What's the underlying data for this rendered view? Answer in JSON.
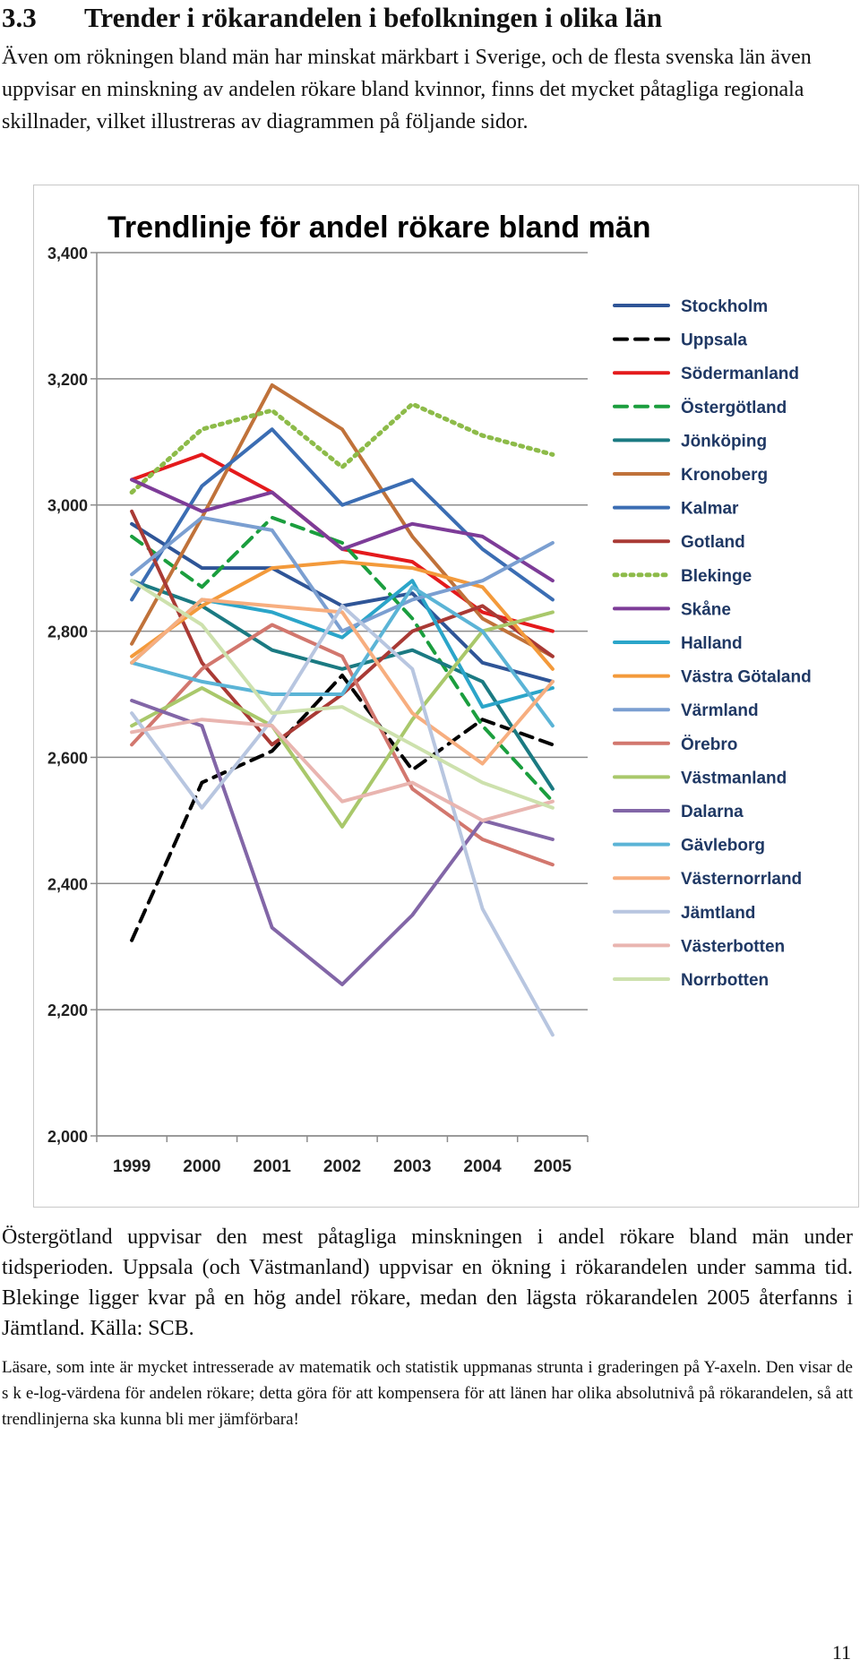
{
  "section": {
    "number": "3.3",
    "title": "Trender i rökarandelen i befolkningen i olika län"
  },
  "intro_text": "Även om rökningen bland män har minskat märkbart i Sverige, och de flesta svenska län även uppvisar en minskning av andelen rökare bland kvinnor, finns det mycket påtagliga regionala skillnader, vilket illustreras av diagrammen på följande sidor.",
  "chart_data": {
    "type": "line",
    "title": "Trendlinje för andel rökare bland män",
    "xlabel": "",
    "ylabel": "",
    "categories": [
      "1999",
      "2000",
      "2001",
      "2002",
      "2003",
      "2004",
      "2005"
    ],
    "ylim": [
      2.0,
      3.4
    ],
    "y_ticks": [
      2.0,
      2.2,
      2.4,
      2.6,
      2.8,
      3.0,
      3.2,
      3.4
    ],
    "y_tick_labels": [
      "2,000",
      "2,200",
      "2,400",
      "2,600",
      "2,800",
      "3,000",
      "3,200",
      "3,400"
    ],
    "legend_position": "right",
    "grid": "horizontal",
    "series": [
      {
        "name": "Stockholm",
        "color": "#2f5597",
        "dash": "solid",
        "values": [
          2.97,
          2.9,
          2.9,
          2.84,
          2.86,
          2.75,
          2.72
        ]
      },
      {
        "name": "Uppsala",
        "color": "#000000",
        "dash": "dashed",
        "values": [
          2.31,
          2.56,
          2.61,
          2.73,
          2.58,
          2.66,
          2.62
        ]
      },
      {
        "name": "Södermanland",
        "color": "#e41a1c",
        "dash": "solid",
        "values": [
          3.04,
          3.08,
          3.02,
          2.93,
          2.91,
          2.83,
          2.8
        ]
      },
      {
        "name": "Östergötland",
        "color": "#1b9e3e",
        "dash": "dashed",
        "values": [
          2.95,
          2.87,
          2.98,
          2.94,
          2.82,
          2.65,
          2.53
        ]
      },
      {
        "name": "Jönköping",
        "color": "#1b7a82",
        "dash": "solid",
        "values": [
          2.88,
          2.84,
          2.77,
          2.74,
          2.77,
          2.72,
          2.55
        ]
      },
      {
        "name": "Kronoberg",
        "color": "#c0723a",
        "dash": "solid",
        "values": [
          2.78,
          2.98,
          3.19,
          3.12,
          2.95,
          2.82,
          2.76
        ]
      },
      {
        "name": "Kalmar",
        "color": "#3b6db3",
        "dash": "solid",
        "values": [
          2.85,
          3.03,
          3.12,
          3.0,
          3.04,
          2.93,
          2.85
        ]
      },
      {
        "name": "Gotland",
        "color": "#a93a35",
        "dash": "solid",
        "values": [
          2.99,
          2.75,
          2.62,
          2.7,
          2.8,
          2.84,
          2.76
        ]
      },
      {
        "name": "Blekinge",
        "color": "#8dbb49",
        "dash": "dotted",
        "values": [
          3.02,
          3.12,
          3.15,
          3.06,
          3.16,
          3.11,
          3.08
        ]
      },
      {
        "name": "Skåne",
        "color": "#7d3c98",
        "dash": "solid",
        "values": [
          3.04,
          2.99,
          3.02,
          2.93,
          2.97,
          2.95,
          2.88
        ]
      },
      {
        "name": "Halland",
        "color": "#2ba5c9",
        "dash": "solid",
        "values": [
          2.75,
          2.85,
          2.83,
          2.79,
          2.88,
          2.68,
          2.71
        ]
      },
      {
        "name": "Västra Götaland",
        "color": "#f39a3b",
        "dash": "solid",
        "values": [
          2.76,
          2.84,
          2.9,
          2.91,
          2.9,
          2.87,
          2.74
        ]
      },
      {
        "name": "Värmland",
        "color": "#7b9fd1",
        "dash": "solid",
        "values": [
          2.89,
          2.98,
          2.96,
          2.8,
          2.85,
          2.88,
          2.94
        ]
      },
      {
        "name": "Örebro",
        "color": "#d2776e",
        "dash": "solid",
        "values": [
          2.62,
          2.74,
          2.81,
          2.76,
          2.55,
          2.47,
          2.43
        ]
      },
      {
        "name": "Västmanland",
        "color": "#a9c86b",
        "dash": "solid",
        "values": [
          2.65,
          2.71,
          2.65,
          2.49,
          2.66,
          2.8,
          2.83
        ]
      },
      {
        "name": "Dalarna",
        "color": "#8266a7",
        "dash": "solid",
        "values": [
          2.69,
          2.65,
          2.33,
          2.24,
          2.35,
          2.5,
          2.47
        ]
      },
      {
        "name": "Gävleborg",
        "color": "#5bb4d6",
        "dash": "solid",
        "values": [
          2.75,
          2.72,
          2.7,
          2.7,
          2.87,
          2.8,
          2.65
        ]
      },
      {
        "name": "Västernorrland",
        "color": "#f7ae7f",
        "dash": "solid",
        "values": [
          2.75,
          2.85,
          2.84,
          2.83,
          2.67,
          2.59,
          2.72
        ]
      },
      {
        "name": "Jämtland",
        "color": "#b8c6e0",
        "dash": "solid",
        "values": [
          2.67,
          2.52,
          2.66,
          2.84,
          2.74,
          2.36,
          2.16
        ]
      },
      {
        "name": "Västerbotten",
        "color": "#e9b5b0",
        "dash": "solid",
        "values": [
          2.64,
          2.66,
          2.65,
          2.53,
          2.56,
          2.5,
          2.53
        ]
      },
      {
        "name": "Norrbotten",
        "color": "#cde1ad",
        "dash": "solid",
        "values": [
          2.88,
          2.81,
          2.67,
          2.68,
          2.62,
          2.56,
          2.52
        ]
      }
    ]
  },
  "caption_text": "Östergötland uppvisar den mest påtagliga minskningen i andel rökare bland män under tidsperioden. Uppsala (och Västmanland) uppvisar en ökning i rökarandelen under samma tid. Blekinge ligger kvar på en hög andel rökare, medan den lägsta rökarandelen 2005 återfanns i Jämtland. Källa: SCB.",
  "note_text": "Läsare, som inte är mycket intresserade av matematik och statistik uppmanas strunta i graderingen på Y-axeln. Den visar de s k e-log-värdena för andelen rökare; detta göra för att kompensera för att länen har olika absolutnivå på rökarandelen, så att trendlinjerna ska kunna bli mer jämförbara!",
  "page_number": "11"
}
